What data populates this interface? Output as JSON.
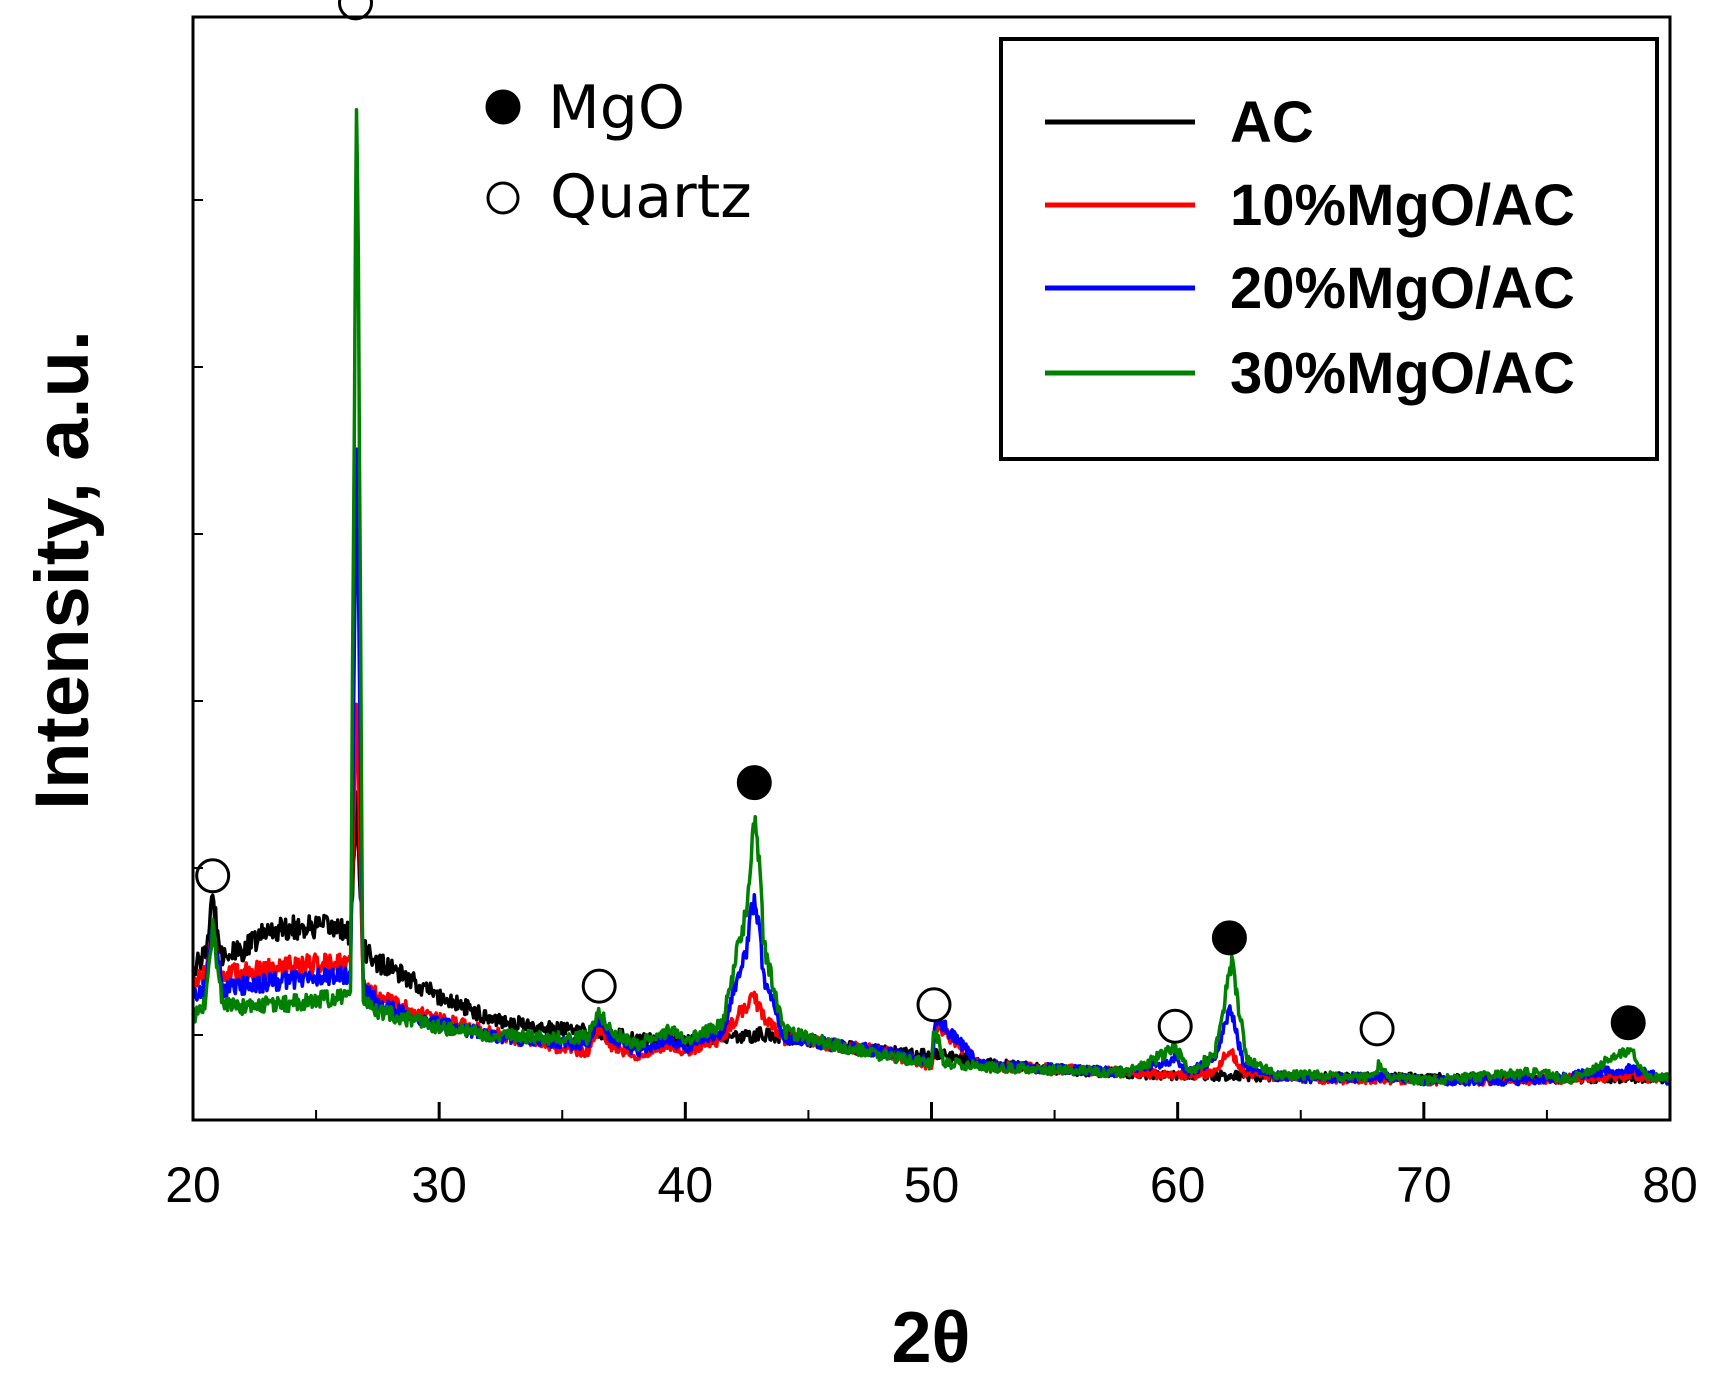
{
  "chart_data": {
    "type": "line",
    "title": "",
    "xlabel": "2θ",
    "ylabel": "Intensity, a.u.",
    "xlim": [
      20,
      80
    ],
    "ylim": [
      0,
      100
    ],
    "xticks": [
      "20",
      "30",
      "40",
      "50",
      "60",
      "70",
      "80"
    ],
    "grid": false,
    "legend_position": "top-right",
    "phase_legend": [
      {
        "label": "MgO",
        "symbol": "filled-circle"
      },
      {
        "label": "Quartz",
        "symbol": "open-circle"
      }
    ],
    "series": [
      {
        "name": "AC",
        "color": "#000000",
        "x": [
          20,
          20.5,
          20.8,
          21.2,
          22,
          23,
          24,
          25,
          26,
          26.4,
          26.65,
          26.9,
          27.5,
          28.5,
          30,
          32,
          34,
          36,
          38,
          40,
          42,
          43,
          44,
          46,
          48,
          50,
          50.2,
          52,
          55,
          58,
          60,
          62,
          64,
          66,
          68,
          70,
          72,
          74,
          76,
          78.5,
          80
        ],
        "values": [
          19,
          21,
          29,
          21,
          21.5,
          24.5,
          25,
          25,
          25,
          24,
          43,
          22,
          20,
          18,
          15,
          12,
          10.5,
          10,
          9,
          8.5,
          9,
          9.5,
          9.2,
          8,
          7,
          6.6,
          6.8,
          5.4,
          4.5,
          3.8,
          3.6,
          3.5,
          3.4,
          3.3,
          3.3,
          3.2,
          3.2,
          3.1,
          3.1,
          3.2,
          3.1
        ]
      },
      {
        "name": "10%MgO/AC",
        "color": "#ff0000",
        "x": [
          20,
          20.5,
          20.8,
          21.2,
          22,
          24,
          26,
          26.4,
          26.65,
          26.9,
          27.5,
          28.5,
          30,
          32,
          34,
          36,
          36.5,
          37,
          38,
          39.4,
          40,
          41.5,
          42.5,
          42.75,
          43,
          44,
          46,
          48,
          50,
          50.2,
          52,
          55,
          58,
          60,
          61.5,
          62.1,
          62.7,
          64,
          66,
          68,
          70,
          74,
          78.5,
          80
        ],
        "values": [
          17,
          18.5,
          24,
          18,
          18.5,
          19.5,
          20,
          20,
          60,
          17,
          15,
          13.5,
          11.5,
          10,
          8,
          7,
          10,
          8,
          6.5,
          8,
          7,
          9,
          14,
          16,
          13,
          9,
          8,
          7,
          5,
          11,
          5,
          4.5,
          4,
          3.5,
          4,
          7.5,
          4,
          3.5,
          3,
          3,
          2.8,
          2.8,
          3.5,
          2.8
        ]
      },
      {
        "name": "20%MgO/AC",
        "color": "#0000ff",
        "x": [
          20,
          20.5,
          20.8,
          21.2,
          22,
          24,
          26,
          26.4,
          26.65,
          26.9,
          27.5,
          28.5,
          30,
          32,
          34,
          36,
          36.5,
          37,
          38,
          39.4,
          40,
          41.5,
          42.5,
          42.8,
          43.2,
          44,
          46,
          48,
          50,
          50.2,
          52,
          55,
          58,
          59.9,
          60.5,
          61.5,
          62.15,
          62.7,
          64,
          66,
          68,
          70,
          74,
          78.5,
          80
        ],
        "values": [
          15,
          16.5,
          25,
          16,
          16.5,
          17.5,
          18,
          18,
          95,
          16,
          14,
          12.5,
          11,
          9.5,
          8.5,
          8,
          12,
          9,
          7,
          9,
          7.5,
          10,
          22,
          30,
          18,
          9,
          8,
          7,
          5.5,
          12,
          5,
          4.5,
          4,
          6,
          4,
          6,
          13,
          5,
          3.5,
          3,
          3.5,
          2.8,
          2.8,
          4.5,
          2.8
        ]
      },
      {
        "name": "30%MgO/AC",
        "color": "#008000",
        "x": [
          20,
          20.5,
          20.8,
          21.2,
          22,
          24,
          26,
          26.4,
          26.65,
          26.9,
          27.5,
          28.5,
          30,
          32,
          34,
          36,
          36.5,
          37,
          38,
          39.4,
          40,
          41.5,
          42.5,
          42.85,
          43.2,
          44,
          46,
          48,
          50,
          50.1,
          50.5,
          52,
          55,
          58,
          59.9,
          60.5,
          61.5,
          62.2,
          62.8,
          64,
          66,
          68,
          68.2,
          68.6,
          70,
          74.5,
          76,
          78.4,
          79,
          80
        ],
        "values": [
          12,
          14,
          25,
          14,
          13.5,
          14,
          15,
          15,
          155,
          15,
          13,
          12,
          10.5,
          9.5,
          9,
          9,
          13,
          10,
          8,
          10,
          8.5,
          11,
          28,
          42,
          22,
          10,
          8,
          6.5,
          5.2,
          11,
          5.5,
          4.8,
          4.3,
          4,
          7.5,
          4.2,
          6.5,
          20,
          6,
          3.8,
          3.5,
          3.3,
          5.5,
          3.3,
          2.8,
          4,
          3,
          7.5,
          3.5,
          3.2
        ]
      }
    ],
    "annotations": [
      {
        "type": "open-circle",
        "phase": "Quartz",
        "x": 20.8,
        "y": 32.5
      },
      {
        "type": "open-circle",
        "phase": "Quartz",
        "x": 26.6,
        "y": 159
      },
      {
        "type": "open-circle",
        "phase": "Quartz",
        "x": 36.5,
        "y": 16.5
      },
      {
        "type": "open-circle",
        "phase": "Quartz",
        "x": 50.1,
        "y": 13.8
      },
      {
        "type": "open-circle",
        "phase": "Quartz",
        "x": 59.9,
        "y": 10.7
      },
      {
        "type": "open-circle",
        "phase": "Quartz",
        "x": 68.1,
        "y": 10.3
      },
      {
        "type": "filled-circle",
        "phase": "MgO",
        "x": 42.8,
        "y": 46
      },
      {
        "type": "filled-circle",
        "phase": "MgO",
        "x": 62.1,
        "y": 23.5
      },
      {
        "type": "filled-circle",
        "phase": "MgO",
        "x": 78.3,
        "y": 11.2
      }
    ]
  }
}
